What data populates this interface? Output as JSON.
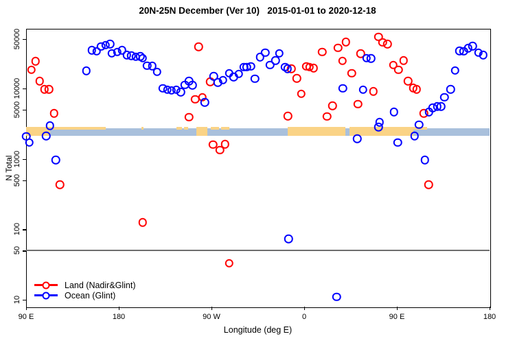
{
  "title": "20N-25N December (Ver 10)   2015-01-01 to 2020-12-18",
  "chart_data": {
    "type": "scatter",
    "title": "20N-25N December (Ver 10)   2015-01-01 to 2020-12-18",
    "xlabel": "Longitude (deg E)",
    "ylabel": "N Total",
    "y_scale": "log",
    "x_range_deg_east": [
      90,
      540
    ],
    "y_range": [
      10,
      70000
    ],
    "grid": "off",
    "reference_line_y": 50,
    "legend_position": "bottom-left",
    "x_axis_ticks": [
      {
        "lon": 90,
        "label": "90 E"
      },
      {
        "lon": 180,
        "label": "180"
      },
      {
        "lon": 270,
        "label": "90 W"
      },
      {
        "lon": 360,
        "label": "0"
      },
      {
        "lon": 450,
        "label": "90 E"
      },
      {
        "lon": 540,
        "label": "180"
      }
    ],
    "y_axis_ticks": [
      {
        "value": 50000,
        "label": "50000"
      },
      {
        "value": 10000,
        "label": "10000"
      },
      {
        "value": 5000,
        "label": "5000"
      },
      {
        "value": 1000,
        "label": "1000"
      },
      {
        "value": 500,
        "label": "500"
      },
      {
        "value": 100,
        "label": "100"
      },
      {
        "value": 50,
        "label": "50"
      },
      {
        "value": 10,
        "label": "10"
      }
    ],
    "series": [
      {
        "name": "Land (Nadir&Glint)",
        "color": "#FF0000",
        "points": [
          [
            95,
            18400
          ],
          [
            99,
            24300
          ],
          [
            103,
            12700
          ],
          [
            107.8,
            9700
          ],
          [
            112.2,
            9700
          ],
          [
            117,
            4450
          ],
          [
            122.9,
            430
          ],
          [
            203.3,
            125
          ],
          [
            248,
            3900
          ],
          [
            254.2,
            7000
          ],
          [
            257.5,
            38900
          ],
          [
            261,
            7500
          ],
          [
            268.7,
            12400
          ],
          [
            271.5,
            1590
          ],
          [
            278.2,
            1330
          ],
          [
            283.1,
            1610
          ],
          [
            287.1,
            33
          ],
          [
            344.2,
            4040
          ],
          [
            347.5,
            19100
          ],
          [
            352.7,
            13900
          ],
          [
            357.1,
            8400
          ],
          [
            362,
            20600
          ],
          [
            365.3,
            20100
          ],
          [
            369.3,
            19500
          ],
          [
            377.5,
            32900
          ],
          [
            382,
            3980
          ],
          [
            387.5,
            5660
          ],
          [
            392.7,
            37500
          ],
          [
            397.1,
            24500
          ],
          [
            400.4,
            45800
          ],
          [
            406,
            16500
          ],
          [
            412,
            6000
          ],
          [
            414.9,
            31000
          ],
          [
            427.1,
            9060
          ],
          [
            432,
            54000
          ],
          [
            436,
            45100
          ],
          [
            440.9,
            42800
          ],
          [
            446.4,
            21400
          ],
          [
            451.6,
            18400
          ],
          [
            456.4,
            24800
          ],
          [
            460.9,
            12700
          ],
          [
            465.8,
            10100
          ],
          [
            469.3,
            9700
          ],
          [
            476,
            4450
          ],
          [
            480.9,
            430
          ]
        ]
      },
      {
        "name": "Ocean (Glint)",
        "color": "#0000FF",
        "points": [
          [
            90.3,
            2100
          ],
          [
            93.3,
            1710
          ],
          [
            109.5,
            2110
          ],
          [
            113.3,
            2970
          ],
          [
            118.9,
            960
          ],
          [
            148.4,
            17700
          ],
          [
            153.8,
            34800
          ],
          [
            158.4,
            33500
          ],
          [
            162.7,
            39400
          ],
          [
            167.3,
            41200
          ],
          [
            171.5,
            42500
          ],
          [
            173.3,
            31500
          ],
          [
            178.4,
            32900
          ],
          [
            183.3,
            34800
          ],
          [
            187.7,
            29600
          ],
          [
            192,
            29000
          ],
          [
            196.4,
            28200
          ],
          [
            200.9,
            28600
          ],
          [
            203.1,
            27000
          ],
          [
            207.5,
            21000
          ],
          [
            212.4,
            20800
          ],
          [
            217.1,
            17100
          ],
          [
            222.7,
            10000
          ],
          [
            227.1,
            9560
          ],
          [
            231.3,
            9400
          ],
          [
            235.8,
            9560
          ],
          [
            240.2,
            8900
          ],
          [
            244.2,
            11200
          ],
          [
            248.2,
            12700
          ],
          [
            251.5,
            11100
          ],
          [
            263.5,
            6320
          ],
          [
            272,
            14900
          ],
          [
            276,
            12200
          ],
          [
            281.3,
            13200
          ],
          [
            287.1,
            16500
          ],
          [
            291.6,
            14500
          ],
          [
            296.4,
            16100
          ],
          [
            301.5,
            20100
          ],
          [
            304.2,
            20100
          ],
          [
            308.2,
            20600
          ],
          [
            312,
            13700
          ],
          [
            317.1,
            27800
          ],
          [
            322,
            32300
          ],
          [
            326.9,
            21400
          ],
          [
            332,
            24800
          ],
          [
            335.8,
            31500
          ],
          [
            341.5,
            20100
          ],
          [
            343.8,
            19100
          ],
          [
            344.9,
            73
          ],
          [
            391.6,
            11
          ],
          [
            397.6,
            10000
          ],
          [
            411.5,
            1930
          ],
          [
            417.1,
            9560
          ],
          [
            420.4,
            26800
          ],
          [
            424.9,
            26500
          ],
          [
            432,
            2840
          ],
          [
            433.1,
            3300
          ],
          [
            447.1,
            4620
          ],
          [
            450.9,
            1710
          ],
          [
            467.1,
            2110
          ],
          [
            471.6,
            3060
          ],
          [
            477.1,
            960
          ],
          [
            481.3,
            4620
          ],
          [
            484.9,
            5290
          ],
          [
            489.3,
            5570
          ],
          [
            492.7,
            5570
          ],
          [
            496,
            7500
          ],
          [
            502,
            9650
          ],
          [
            506.4,
            17900
          ],
          [
            510.9,
            34000
          ],
          [
            514.9,
            33800
          ],
          [
            519.1,
            37300
          ],
          [
            523.6,
            40000
          ],
          [
            529.3,
            32300
          ],
          [
            533.8,
            29900
          ]
        ]
      }
    ]
  },
  "legend": {
    "items": [
      {
        "label": "Land (Nadir&Glint)",
        "color": "#FF0000"
      },
      {
        "label": "Ocean (Glint)",
        "color": "#0000FF"
      }
    ]
  },
  "map_band": {
    "description": "land/ocean strip map of the 20N-25N latitude band",
    "ocean_color": "#A9C0DC",
    "land_color": "#FAD386",
    "n_center": 2400,
    "segments": [
      {
        "from": 90,
        "to": 113,
        "type": "full"
      },
      {
        "from": 113,
        "to": 123,
        "type": "top"
      },
      {
        "from": 123,
        "to": 167,
        "type": "top"
      },
      {
        "from": 202,
        "to": 204,
        "type": "top"
      },
      {
        "from": 236,
        "to": 241,
        "type": "top"
      },
      {
        "from": 243,
        "to": 247,
        "type": "top"
      },
      {
        "from": 255,
        "to": 266,
        "type": "full"
      },
      {
        "from": 269,
        "to": 277,
        "type": "top"
      },
      {
        "from": 279,
        "to": 287,
        "type": "top"
      },
      {
        "from": 344,
        "to": 400,
        "type": "full"
      },
      {
        "from": 404,
        "to": 466,
        "type": "full"
      },
      {
        "from": 466,
        "to": 479,
        "type": "top"
      }
    ]
  }
}
